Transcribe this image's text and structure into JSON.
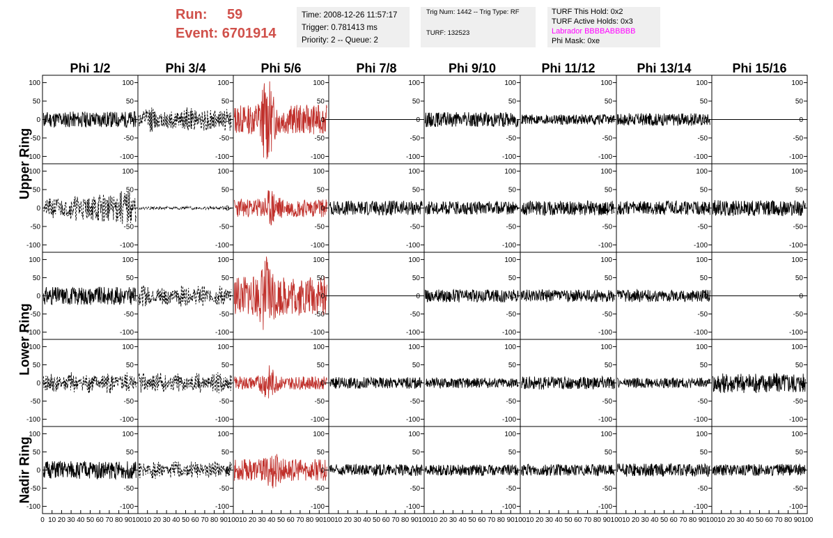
{
  "header": {
    "run_label": "Run:",
    "run_value": "59",
    "event_label": "Event:",
    "event_value": "6701914",
    "time_text": "Time: 2008-12-26 11:57:17",
    "trigger_text": "Trigger: 0.781413 ms",
    "priority_text": "Priority: 2 -- Queue: 2",
    "trig_num_text": "Trig Num: 1442 -- Trig Type: RF",
    "turf_text": "TURF: 132523",
    "turf_hold_text": "TURF This Hold: 0x2",
    "turf_active_text": "TURF Active Holds: 0x3",
    "labrador_text": "Labrador BBBBABBBBB",
    "phi_mask_text": "Phi Mask: 0xe"
  },
  "colors": {
    "header_red": "#d0504a",
    "labrador_magenta": "#ff00ff",
    "trace_black": "#000000",
    "trace_red": "#c0302b",
    "info_bg": "#efefef"
  },
  "chart_data": {
    "type": "line",
    "columns": [
      "Phi 1/2",
      "Phi 3/4",
      "Phi 5/6",
      "Phi 7/8",
      "Phi 9/10",
      "Phi 11/12",
      "Phi 13/14",
      "Phi 15/16"
    ],
    "ring_labels": [
      {
        "name": "Upper Ring",
        "rows": [
          0,
          1
        ]
      },
      {
        "name": "Lower Ring",
        "rows": [
          2,
          3
        ]
      },
      {
        "name": "Nadir Ring",
        "rows": [
          4
        ]
      }
    ],
    "ylim": [
      -120,
      120
    ],
    "xlim": [
      0,
      100
    ],
    "yticks": [
      -100,
      -50,
      0,
      50,
      100
    ],
    "xtick_labels": [
      "0",
      "10",
      "20",
      "30",
      "40",
      "50",
      "60",
      "70",
      "80",
      "90",
      "100"
    ],
    "waveforms": [
      [
        {
          "style": "solid",
          "color": "black",
          "amp": 22,
          "seed": 11
        },
        {
          "style": "dashed",
          "color": "black",
          "amp": 35,
          "seed": 12,
          "envelope": "beat"
        },
        {
          "style": "solid",
          "color": "red",
          "amp": 40,
          "seed": 13,
          "pulse": {
            "center": 35,
            "peak": 120
          }
        },
        {
          "style": "flat",
          "color": "black",
          "amp": 0,
          "seed": 14
        },
        {
          "style": "solid",
          "color": "black",
          "amp": 20,
          "seed": 15
        },
        {
          "style": "solid",
          "color": "black",
          "amp": 14,
          "seed": 16
        },
        {
          "style": "solid",
          "color": "black",
          "amp": 17,
          "seed": 17
        },
        {
          "style": "flat",
          "color": "black",
          "amp": 0,
          "seed": 18
        }
      ],
      [
        {
          "style": "dashed",
          "color": "black",
          "amp": 40,
          "seed": 21,
          "envelope": "grow"
        },
        {
          "style": "dashed",
          "color": "black",
          "amp": 4,
          "seed": 22
        },
        {
          "style": "solid",
          "color": "red",
          "amp": 25,
          "seed": 23,
          "pulse": {
            "center": 40,
            "peak": 55
          }
        },
        {
          "style": "solid",
          "color": "black",
          "amp": 20,
          "seed": 24
        },
        {
          "style": "solid",
          "color": "black",
          "amp": 18,
          "seed": 25
        },
        {
          "style": "solid",
          "color": "black",
          "amp": 20,
          "seed": 26
        },
        {
          "style": "solid",
          "color": "black",
          "amp": 19,
          "seed": 27
        },
        {
          "style": "solid",
          "color": "black",
          "amp": 22,
          "seed": 28
        }
      ],
      [
        {
          "style": "solid",
          "color": "black",
          "amp": 25,
          "seed": 31
        },
        {
          "style": "dashed",
          "color": "black",
          "amp": 30,
          "seed": 32,
          "envelope": "beat"
        },
        {
          "style": "solid",
          "color": "red",
          "amp": 55,
          "seed": 33,
          "pulse": {
            "center": 35,
            "peak": 110
          }
        },
        {
          "style": "flat",
          "color": "black",
          "amp": 0,
          "seed": 34
        },
        {
          "style": "solid",
          "color": "black",
          "amp": 18,
          "seed": 35
        },
        {
          "style": "solid",
          "color": "black",
          "amp": 17,
          "seed": 36
        },
        {
          "style": "solid",
          "color": "black",
          "amp": 17,
          "seed": 37
        },
        {
          "style": "flat",
          "color": "black",
          "amp": 0,
          "seed": 38
        }
      ],
      [
        {
          "style": "dashed",
          "color": "black",
          "amp": 30,
          "seed": 41,
          "envelope": "beat"
        },
        {
          "style": "dashed",
          "color": "black",
          "amp": 30,
          "seed": 42,
          "envelope": "beat"
        },
        {
          "style": "solid",
          "color": "red",
          "amp": 18,
          "seed": 43,
          "pulse": {
            "center": 37,
            "peak": 50
          }
        },
        {
          "style": "solid",
          "color": "black",
          "amp": 16,
          "seed": 44
        },
        {
          "style": "solid",
          "color": "black",
          "amp": 14,
          "seed": 45
        },
        {
          "style": "solid",
          "color": "black",
          "amp": 18,
          "seed": 46
        },
        {
          "style": "solid",
          "color": "black",
          "amp": 14,
          "seed": 47
        },
        {
          "style": "solid",
          "color": "black",
          "amp": 28,
          "seed": 48
        }
      ],
      [
        {
          "style": "solid",
          "color": "black",
          "amp": 25,
          "seed": 51
        },
        {
          "style": "dashed",
          "color": "black",
          "amp": 25,
          "seed": 52,
          "envelope": "beat"
        },
        {
          "style": "solid",
          "color": "red",
          "amp": 30,
          "seed": 53,
          "pulse": {
            "center": 42,
            "peak": 55
          }
        },
        {
          "style": "solid",
          "color": "black",
          "amp": 16,
          "seed": 54
        },
        {
          "style": "solid",
          "color": "black",
          "amp": 15,
          "seed": 55
        },
        {
          "style": "solid",
          "color": "black",
          "amp": 16,
          "seed": 56
        },
        {
          "style": "solid",
          "color": "black",
          "amp": 18,
          "seed": 57
        },
        {
          "style": "solid",
          "color": "black",
          "amp": 16,
          "seed": 58
        }
      ]
    ]
  }
}
